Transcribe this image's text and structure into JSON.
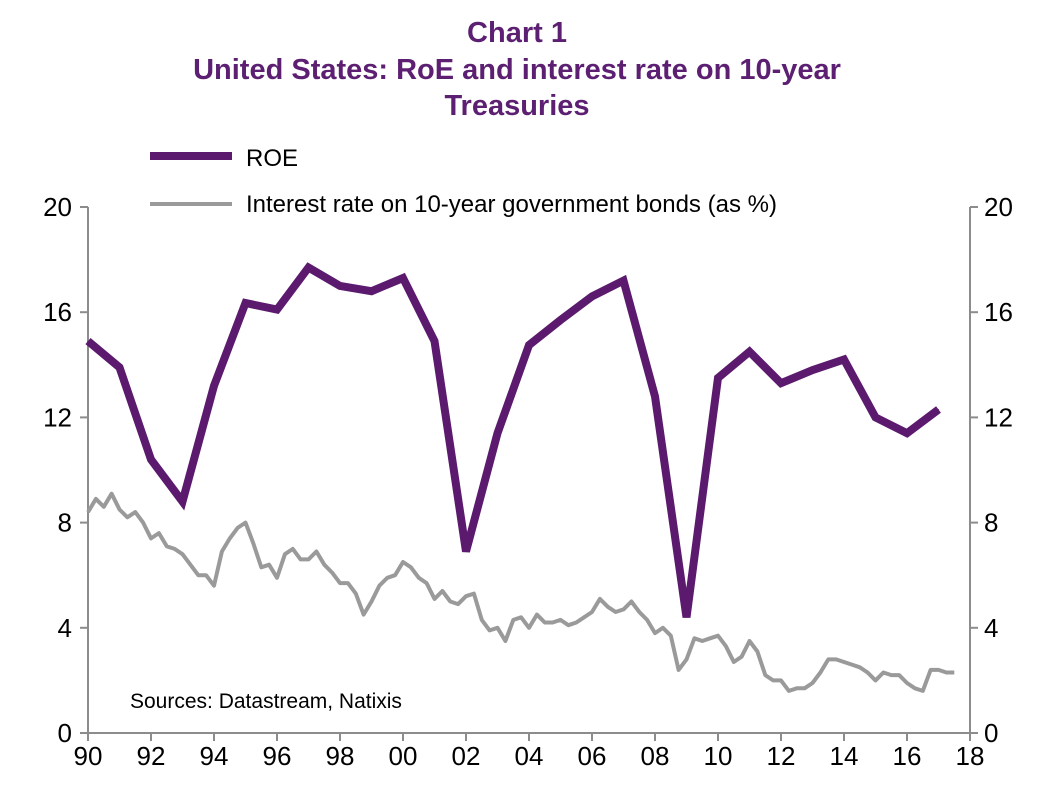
{
  "chart_data": {
    "type": "line",
    "title": "Chart 1",
    "subtitle": "United States: RoE and interest rate on 10-year Treasuries",
    "subtitle_lines": [
      "United States: RoE and interest rate on 10-year",
      "Treasuries"
    ],
    "source": "Sources: Datastream, Natixis",
    "xlim": [
      1990,
      2018
    ],
    "ylim": [
      0,
      20
    ],
    "y_right_lim": [
      0,
      20
    ],
    "x_ticks": [
      1990,
      1992,
      1994,
      1996,
      1998,
      2000,
      2002,
      2004,
      2006,
      2008,
      2010,
      2012,
      2014,
      2016,
      2018
    ],
    "x_tick_labels": [
      "90",
      "92",
      "94",
      "96",
      "98",
      "00",
      "02",
      "04",
      "06",
      "08",
      "10",
      "12",
      "14",
      "16",
      "18"
    ],
    "y_ticks": [
      0,
      4,
      8,
      12,
      16,
      20
    ],
    "y_tick_labels": [
      "0",
      "4",
      "8",
      "12",
      "16",
      "20"
    ],
    "grid": false,
    "legend_placement": "top-left",
    "colors": {
      "title": "#5c1f72",
      "roe": "#5c1a6e",
      "bond": "#9a9a9a",
      "axis": "#8c8c8c"
    },
    "series": [
      {
        "name": "ROE",
        "x": [
          1990,
          1991,
          1992,
          1993,
          1994,
          1995,
          1996,
          1997,
          1998,
          1999,
          2000,
          2001,
          2002,
          2003,
          2004,
          2005,
          2006,
          2007,
          2008,
          2009,
          2010,
          2011,
          2012,
          2013,
          2014,
          2015,
          2016,
          2017
        ],
        "values": [
          14.9,
          13.9,
          10.4,
          8.8,
          13.2,
          16.35,
          16.1,
          17.7,
          17.0,
          16.8,
          17.3,
          14.9,
          6.9,
          11.4,
          14.75,
          15.7,
          16.6,
          17.2,
          12.8,
          4.4,
          13.5,
          14.5,
          13.3,
          13.8,
          14.2,
          12.0,
          11.4,
          12.3
        ]
      },
      {
        "name": "Interest rate on 10-year government bonds (as %)",
        "x_start": 1990,
        "x_step": 0.25,
        "values": [
          8.4,
          8.9,
          8.6,
          9.1,
          8.5,
          8.2,
          8.4,
          8.0,
          7.4,
          7.6,
          7.1,
          7.0,
          6.8,
          6.4,
          6.0,
          6.0,
          5.6,
          6.9,
          7.4,
          7.8,
          8.0,
          7.2,
          6.3,
          6.4,
          5.9,
          6.8,
          7.0,
          6.6,
          6.6,
          6.9,
          6.4,
          6.1,
          5.7,
          5.7,
          5.3,
          4.5,
          5.0,
          5.6,
          5.9,
          6.0,
          6.5,
          6.3,
          5.9,
          5.7,
          5.1,
          5.4,
          5.0,
          4.9,
          5.2,
          5.3,
          4.3,
          3.9,
          4.0,
          3.5,
          4.3,
          4.4,
          4.0,
          4.5,
          4.2,
          4.2,
          4.3,
          4.1,
          4.2,
          4.4,
          4.6,
          5.1,
          4.8,
          4.6,
          4.7,
          5.0,
          4.6,
          4.3,
          3.8,
          4.0,
          3.7,
          2.4,
          2.8,
          3.6,
          3.5,
          3.6,
          3.7,
          3.3,
          2.7,
          2.9,
          3.5,
          3.1,
          2.2,
          2.0,
          2.0,
          1.6,
          1.7,
          1.7,
          1.9,
          2.3,
          2.8,
          2.8,
          2.7,
          2.6,
          2.5,
          2.3,
          2.0,
          2.3,
          2.2,
          2.2,
          1.9,
          1.7,
          1.6,
          2.4,
          2.4,
          2.3,
          2.3
        ]
      }
    ]
  }
}
